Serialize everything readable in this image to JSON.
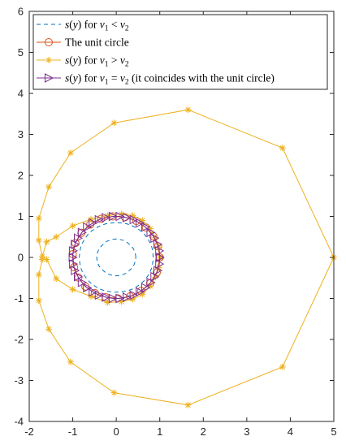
{
  "chart_data": {
    "type": "line",
    "xlim": [
      -2,
      5
    ],
    "ylim": [
      -4,
      6
    ],
    "x_ticks": [
      "-2",
      "-1",
      "0",
      "1",
      "2",
      "3",
      "4",
      "5"
    ],
    "y_ticks": [
      "-4",
      "-3",
      "-2",
      "-1",
      "0",
      "1",
      "2",
      "3",
      "4",
      "5",
      "6"
    ],
    "grid": false,
    "legend_position": "top",
    "colors": {
      "blue": "#0072BD",
      "orange": "#D95319",
      "yellow": "#EDB120",
      "purple": "#7E2F8E",
      "axis": "#262626"
    },
    "series": [
      {
        "name": "s(y) for ν₁ < ν₂",
        "label_parts": [
          "s",
          "(",
          "y",
          ") for ",
          "ν",
          "1",
          " < ",
          "ν",
          "2"
        ],
        "color": "#0072BD",
        "style": "dashed",
        "marker": "none",
        "x": [
          0.85,
          0.84,
          0.82,
          0.78,
          0.72,
          0.65,
          0.56,
          0.46,
          0.35,
          0.24,
          0.12,
          0.0,
          -0.12,
          -0.24,
          -0.35,
          -0.46,
          -0.56,
          -0.65,
          -0.72,
          -0.78,
          -0.82,
          -0.84,
          -0.85,
          -0.84,
          -0.82,
          -0.78,
          -0.72,
          -0.65,
          -0.56,
          -0.46,
          -0.35,
          -0.24,
          -0.12,
          0.0,
          0.12,
          0.24,
          0.35,
          0.46,
          0.56,
          0.65,
          0.72,
          0.78,
          0.82,
          0.84,
          0.85,
          0.45,
          0.44,
          0.42,
          0.39,
          0.34,
          0.28,
          0.22,
          0.15,
          0.08,
          0.0,
          -0.08,
          -0.15,
          -0.22,
          -0.28,
          -0.34,
          -0.39,
          -0.42,
          -0.44,
          -0.45,
          -0.44,
          -0.42,
          -0.39,
          -0.34,
          -0.28,
          -0.22,
          -0.15,
          -0.08,
          0.0,
          0.08,
          0.15,
          0.22,
          0.28,
          0.34,
          0.39,
          0.42,
          0.44,
          0.45
        ],
        "y": [
          0.0,
          0.12,
          0.24,
          0.35,
          0.46,
          0.56,
          0.65,
          0.72,
          0.78,
          0.82,
          0.84,
          0.85,
          0.84,
          0.82,
          0.78,
          0.72,
          0.65,
          0.56,
          0.46,
          0.35,
          0.24,
          0.12,
          0.0,
          -0.12,
          -0.24,
          -0.35,
          -0.46,
          -0.56,
          -0.65,
          -0.72,
          -0.78,
          -0.82,
          -0.84,
          -0.85,
          -0.84,
          -0.82,
          -0.78,
          -0.72,
          -0.65,
          -0.56,
          -0.46,
          -0.35,
          -0.24,
          -0.12,
          0.0,
          0.0,
          0.08,
          0.15,
          0.22,
          0.28,
          0.34,
          0.39,
          0.42,
          0.44,
          0.45,
          0.44,
          0.42,
          0.39,
          0.34,
          0.28,
          0.22,
          0.15,
          0.08,
          0.0,
          -0.08,
          -0.15,
          -0.22,
          -0.28,
          -0.34,
          -0.39,
          -0.42,
          -0.44,
          -0.45,
          -0.44,
          -0.42,
          -0.39,
          -0.34,
          -0.28,
          -0.22,
          -0.15,
          -0.08,
          0.0
        ]
      },
      {
        "name": "The unit circle",
        "label_parts": [
          "The unit circle"
        ],
        "color": "#D95319",
        "style": "solid",
        "marker": "circle",
        "x": [
          1.0,
          0.96,
          0.85,
          0.68,
          0.46,
          0.2,
          -0.08,
          -0.35,
          -0.6,
          -0.8,
          -0.94,
          -1.0,
          -0.97,
          -0.87,
          -0.71,
          -0.49,
          -0.24,
          0.04,
          0.32,
          0.57,
          0.78,
          0.93,
          1.0
        ],
        "y": [
          0.0,
          0.27,
          0.52,
          0.73,
          0.89,
          0.98,
          1.0,
          0.94,
          0.8,
          0.6,
          0.35,
          0.08,
          -0.24,
          -0.49,
          -0.71,
          -0.87,
          -0.97,
          -1.0,
          -0.95,
          -0.82,
          -0.63,
          -0.37,
          0.0
        ]
      },
      {
        "name": "s(y) for ν₁ > ν₂",
        "label_parts": [
          "s",
          "(",
          "y",
          ") for ",
          "ν",
          "1",
          " > ",
          "ν",
          "2"
        ],
        "color": "#EDB120",
        "style": "solid",
        "marker": "asterisk",
        "x": [
          5.0,
          3.82,
          1.65,
          -0.05,
          -1.05,
          -1.55,
          -1.78,
          -1.78,
          -1.7,
          -1.6,
          -1.38,
          -1.0,
          -0.58,
          -0.2,
          0.12,
          0.38,
          0.6,
          0.78,
          0.9,
          0.98,
          1.0,
          0.98,
          0.9,
          0.78,
          0.6,
          0.38,
          0.12,
          -0.2,
          -0.58,
          -1.0,
          -1.38,
          -1.6,
          -1.7,
          -1.78,
          -1.78,
          -1.55,
          -1.05,
          -0.05,
          1.65,
          3.82,
          5.0
        ],
        "y": [
          0.0,
          2.67,
          3.6,
          3.28,
          2.55,
          1.72,
          0.95,
          0.42,
          0.02,
          0.38,
          0.5,
          0.77,
          0.93,
          1.02,
          1.06,
          1.02,
          0.9,
          0.7,
          0.48,
          0.25,
          0.0,
          -0.25,
          -0.48,
          -0.7,
          -0.9,
          -1.02,
          -1.08,
          -1.1,
          -0.95,
          -0.78,
          -0.52,
          -0.05,
          -0.05,
          -0.42,
          -1.05,
          -1.75,
          -2.55,
          -3.3,
          -3.6,
          -2.67,
          0.0
        ]
      },
      {
        "name": "s(y) for ν₁ = ν₂ (it coincides with the unit circle)",
        "label_parts": [
          "s",
          "(",
          "y",
          ") for ",
          "ν",
          "1",
          " = ",
          "ν",
          "2",
          " (it coincides with the unit circle)"
        ],
        "color": "#7E2F8E",
        "style": "solid",
        "marker": "triangle-right",
        "x": [
          1.0,
          0.99,
          0.95,
          0.88,
          0.79,
          0.67,
          0.54,
          0.4,
          0.24,
          0.08,
          -0.08,
          -0.24,
          -0.4,
          -0.54,
          -0.67,
          -0.79,
          -0.88,
          -0.95,
          -0.99,
          -1.0,
          -0.99,
          -0.95,
          -0.88,
          -0.79,
          -0.67,
          -0.54,
          -0.4,
          -0.24,
          -0.08,
          0.08,
          0.24,
          0.4,
          0.54,
          0.67,
          0.79,
          0.88,
          0.95,
          0.99,
          1.0
        ],
        "y": [
          0.0,
          0.16,
          0.32,
          0.47,
          0.61,
          0.74,
          0.84,
          0.92,
          0.97,
          1.0,
          1.0,
          0.97,
          0.92,
          0.84,
          0.74,
          0.61,
          0.47,
          0.32,
          0.16,
          0.0,
          -0.16,
          -0.32,
          -0.47,
          -0.61,
          -0.74,
          -0.84,
          -0.92,
          -0.97,
          -1.0,
          -1.0,
          -0.97,
          -0.92,
          -0.84,
          -0.74,
          -0.61,
          -0.47,
          -0.32,
          -0.16,
          0.0
        ]
      }
    ]
  }
}
